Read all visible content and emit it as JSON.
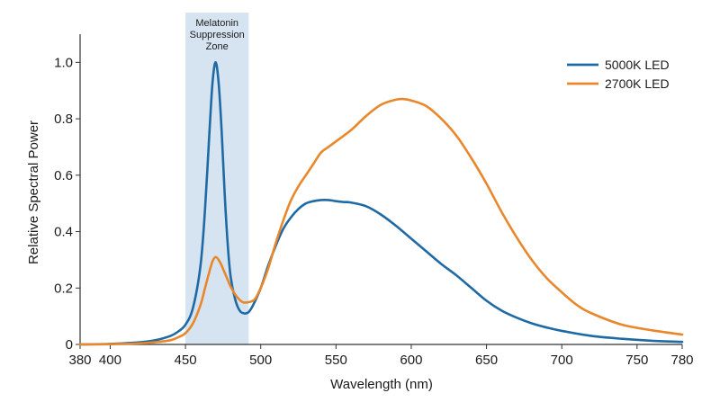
{
  "chart_data": {
    "type": "line",
    "xlabel": "Wavelength (nm)",
    "ylabel": "Relative Spectral Power",
    "xlim": [
      380,
      780
    ],
    "ylim": [
      0,
      1.1
    ],
    "x_ticks": [
      380,
      400,
      450,
      500,
      550,
      600,
      650,
      700,
      750,
      780
    ],
    "y_ticks": [
      0,
      0.2,
      0.4,
      0.6,
      0.8,
      1.0
    ],
    "y_tick_labels": [
      "0",
      "0.2",
      "0.4",
      "0.6",
      "0.8",
      "1.0"
    ],
    "grid": false,
    "legend_position": "top-right",
    "shaded_region": {
      "label_lines": [
        "Melatonin",
        "Suppression",
        "Zone"
      ],
      "x_range": [
        450,
        492
      ],
      "color": "#d6e4f1"
    },
    "series": [
      {
        "name": "5000K LED",
        "color": "#1f6aa5",
        "x": [
          380,
          400,
          420,
          430,
          440,
          445,
          450,
          455,
          460,
          463,
          466,
          468,
          470,
          472,
          474,
          476,
          478,
          480,
          483,
          486,
          489,
          492,
          495,
          500,
          505,
          510,
          515,
          520,
          525,
          530,
          535,
          540,
          545,
          550,
          555,
          560,
          570,
          580,
          590,
          600,
          610,
          620,
          630,
          640,
          650,
          660,
          670,
          680,
          690,
          700,
          720,
          740,
          760,
          780
        ],
        "y": [
          0,
          0.002,
          0.008,
          0.015,
          0.03,
          0.045,
          0.07,
          0.13,
          0.28,
          0.48,
          0.76,
          0.93,
          1.0,
          0.93,
          0.76,
          0.54,
          0.36,
          0.24,
          0.16,
          0.12,
          0.11,
          0.115,
          0.14,
          0.2,
          0.28,
          0.35,
          0.41,
          0.45,
          0.48,
          0.5,
          0.508,
          0.512,
          0.512,
          0.508,
          0.505,
          0.503,
          0.49,
          0.46,
          0.42,
          0.375,
          0.33,
          0.285,
          0.245,
          0.2,
          0.155,
          0.12,
          0.095,
          0.075,
          0.06,
          0.048,
          0.03,
          0.02,
          0.013,
          0.009
        ]
      },
      {
        "name": "2700K LED",
        "color": "#e8872b",
        "x": [
          380,
          400,
          420,
          430,
          440,
          445,
          450,
          455,
          460,
          463,
          466,
          468,
          470,
          472,
          474,
          476,
          478,
          480,
          484,
          488,
          492,
          496,
          500,
          505,
          510,
          515,
          520,
          525,
          530,
          535,
          540,
          545,
          550,
          560,
          570,
          580,
          590,
          595,
          600,
          610,
          620,
          630,
          640,
          650,
          660,
          670,
          680,
          690,
          700,
          710,
          720,
          740,
          760,
          780
        ],
        "y": [
          0,
          0.001,
          0.004,
          0.008,
          0.015,
          0.025,
          0.04,
          0.075,
          0.14,
          0.2,
          0.26,
          0.295,
          0.31,
          0.3,
          0.28,
          0.255,
          0.23,
          0.205,
          0.17,
          0.15,
          0.15,
          0.16,
          0.2,
          0.27,
          0.36,
          0.44,
          0.51,
          0.56,
          0.6,
          0.64,
          0.68,
          0.7,
          0.72,
          0.76,
          0.81,
          0.85,
          0.868,
          0.87,
          0.865,
          0.845,
          0.8,
          0.74,
          0.66,
          0.57,
          0.47,
          0.38,
          0.3,
          0.235,
          0.185,
          0.14,
          0.11,
          0.07,
          0.05,
          0.035
        ]
      }
    ]
  }
}
